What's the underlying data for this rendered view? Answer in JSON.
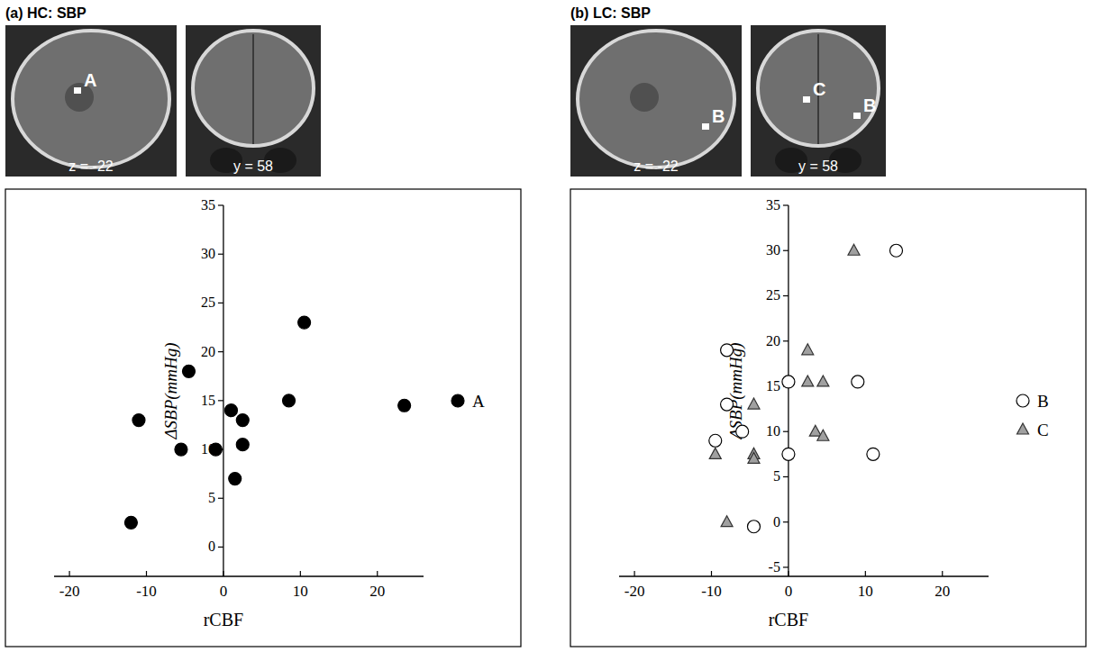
{
  "chart_data": [
    {
      "type": "scatter",
      "title": "(a) HC: SBP",
      "image_labels": [
        "z = -22",
        "y = 58"
      ],
      "x_label": "rCBF",
      "y_label": "ΔSBP(mmHg)",
      "xlim": [
        -22,
        26
      ],
      "ylim": [
        -3,
        35
      ],
      "xticks": [
        -20,
        -10,
        0,
        10,
        20
      ],
      "yticks": [
        0,
        5,
        10,
        15,
        20,
        25,
        30,
        35
      ],
      "legend": "right",
      "series": [
        {
          "name": "A",
          "color": "#000000",
          "marker": "circle",
          "x": [
            -12,
            -11,
            -5.5,
            -4.5,
            -1,
            1,
            1.5,
            2.5,
            2.5,
            8.5,
            10.5,
            23.5
          ],
          "values": [
            2.5,
            13,
            10,
            18,
            10,
            14,
            7,
            13,
            10.5,
            15,
            23,
            14.5
          ]
        }
      ]
    },
    {
      "type": "scatter",
      "title": "(b) LC: SBP",
      "image_labels": [
        "z = -22",
        "y = 58"
      ],
      "x_label": "rCBF",
      "y_label": "ΔSBP(mmHg)",
      "xlim": [
        -22,
        26
      ],
      "ylim": [
        -6,
        35
      ],
      "xticks": [
        -20,
        -10,
        0,
        10,
        20
      ],
      "yticks": [
        -5,
        0,
        5,
        10,
        15,
        20,
        25,
        30,
        35
      ],
      "legend": "right",
      "series": [
        {
          "name": "B",
          "color": "#ffffff",
          "marker": "circle",
          "x": [
            -9.5,
            -8,
            -8,
            -6,
            -4.5,
            0,
            0,
            9,
            11,
            14
          ],
          "values": [
            9,
            19,
            13,
            10,
            -0.5,
            15.5,
            7.5,
            15.5,
            7.5,
            30
          ]
        },
        {
          "name": "C",
          "color": "#a0a0a0",
          "marker": "triangle",
          "x": [
            -9.5,
            -8,
            -4.5,
            -4.5,
            -4.5,
            2.5,
            2.5,
            4.5,
            3.5,
            4.5,
            8.5
          ],
          "values": [
            7.5,
            0,
            13,
            7.5,
            7,
            19,
            15.5,
            15.5,
            10,
            9.5,
            30
          ]
        }
      ]
    }
  ]
}
